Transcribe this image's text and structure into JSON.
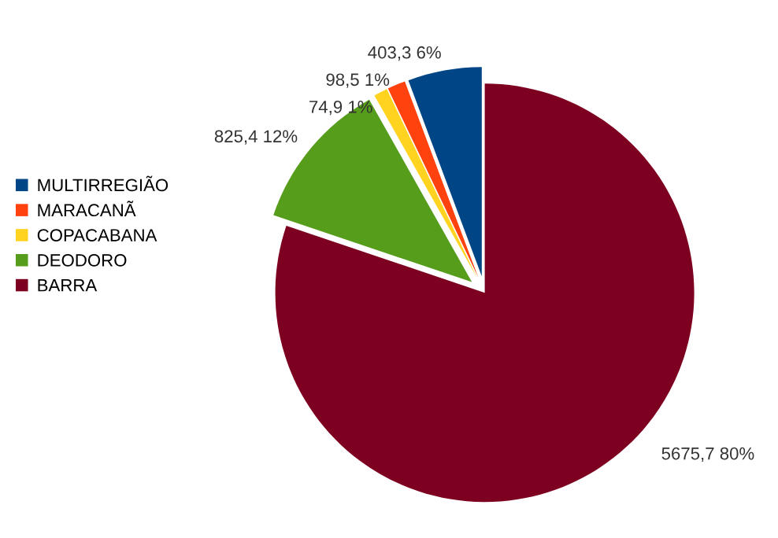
{
  "chart_data": {
    "type": "pie",
    "categories": [
      "MULTIRREGIÃO",
      "MARACANÃ",
      "COPACABANA",
      "DEODORO",
      "BARRA"
    ],
    "values": [
      403.3,
      98.5,
      74.9,
      825.4,
      5675.7
    ],
    "colors": [
      "#004586",
      "#ff420e",
      "#ffd320",
      "#579d1c",
      "#7e0021"
    ],
    "value_labels": [
      "403,3 6%",
      "98,5 1%",
      "74,9 1%",
      "825,4 12%",
      "5675,7 80%"
    ],
    "legend": "left"
  }
}
